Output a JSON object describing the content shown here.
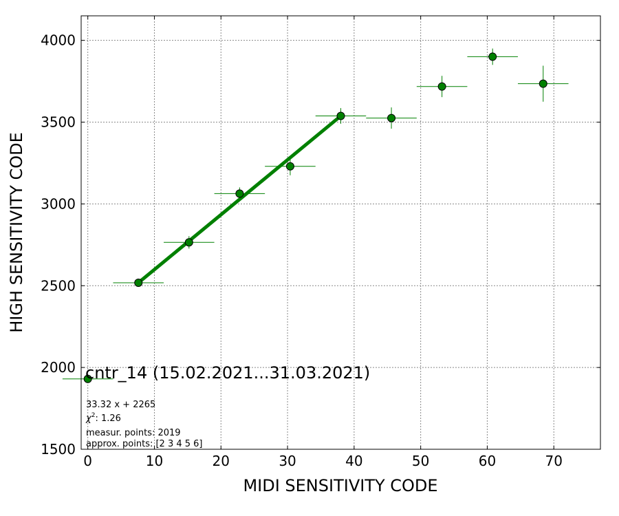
{
  "chart_data": {
    "type": "scatter",
    "xlabel": "MIDI SENSITIVITY CODE",
    "ylabel": "HIGH SENSITIVITY CODE",
    "xlim": [
      -1,
      77
    ],
    "ylim": [
      1500,
      4150
    ],
    "x_ticks": [
      0,
      10,
      20,
      30,
      40,
      50,
      60,
      70
    ],
    "y_ticks": [
      1500,
      2000,
      2500,
      3000,
      3500,
      4000
    ],
    "x_tick_labels": [
      "0",
      "10",
      "20",
      "30",
      "40",
      "50",
      "60",
      "70"
    ],
    "y_tick_labels": [
      "1500",
      "2000",
      "2500",
      "3000",
      "3500",
      "4000"
    ],
    "grid": true,
    "colors": {
      "marker": "#008000",
      "edge": "#000000",
      "fit": "#008000"
    },
    "points": [
      {
        "x": 0.0,
        "y": 1930,
        "xerr": 3.8,
        "yerr": 0
      },
      {
        "x": 7.6,
        "y": 2518,
        "xerr": 3.8,
        "yerr": 10
      },
      {
        "x": 15.2,
        "y": 2765,
        "xerr": 3.8,
        "yerr": 38
      },
      {
        "x": 22.8,
        "y": 3063,
        "xerr": 3.8,
        "yerr": 38
      },
      {
        "x": 30.4,
        "y": 3230,
        "xerr": 3.8,
        "yerr": 55
      },
      {
        "x": 38.0,
        "y": 3538,
        "xerr": 3.8,
        "yerr": 48
      },
      {
        "x": 45.6,
        "y": 3525,
        "xerr": 3.8,
        "yerr": 65
      },
      {
        "x": 53.2,
        "y": 3718,
        "xerr": 3.8,
        "yerr": 65
      },
      {
        "x": 60.8,
        "y": 3900,
        "xerr": 3.8,
        "yerr": 50
      },
      {
        "x": 68.4,
        "y": 3735,
        "xerr": 3.8,
        "yerr": 110
      }
    ],
    "fit": {
      "x": [
        7.6,
        38.0
      ],
      "y": [
        2518,
        3538
      ]
    },
    "legend_title": "cntr_14 (15.02.2021...31.03.2021)",
    "annotations": [
      "33.32 x + 2265",
      ": 1.26",
      "measur. points: 2019",
      "approx. points: [2 3 4 5 6]"
    ],
    "chi_symbol": "χ",
    "chi_sup": "2"
  }
}
